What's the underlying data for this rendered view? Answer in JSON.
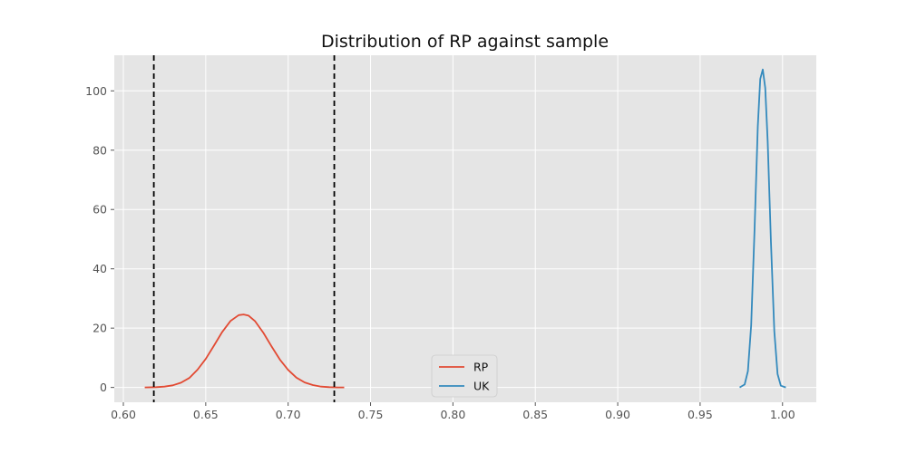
{
  "chart_data": {
    "type": "line",
    "title": "Distribution of RP against sample",
    "xlabel": "",
    "ylabel": "",
    "xlim": [
      0.5945,
      1.0205
    ],
    "ylim": [
      -5.0,
      112.0
    ],
    "x_ticks": [
      0.6,
      0.65,
      0.7,
      0.75,
      0.8,
      0.85,
      0.9,
      0.95,
      1.0
    ],
    "x_tick_labels": [
      "0.60",
      "0.65",
      "0.70",
      "0.75",
      "0.80",
      "0.85",
      "0.90",
      "0.95",
      "1.00"
    ],
    "y_ticks": [
      0,
      20,
      40,
      60,
      80,
      100
    ],
    "y_tick_labels": [
      "0",
      "20",
      "40",
      "60",
      "80",
      "100"
    ],
    "grid": true,
    "legend_position": "lower center",
    "series": [
      {
        "name": "RP",
        "color": "#E24A33",
        "x": [
          0.613,
          0.62,
          0.625,
          0.63,
          0.635,
          0.64,
          0.645,
          0.65,
          0.655,
          0.66,
          0.665,
          0.67,
          0.673,
          0.676,
          0.68,
          0.685,
          0.69,
          0.695,
          0.7,
          0.705,
          0.71,
          0.715,
          0.72,
          0.725,
          0.73,
          0.734
        ],
        "y": [
          0.0,
          0.1,
          0.3,
          0.7,
          1.6,
          3.2,
          6.0,
          9.6,
          14.1,
          18.7,
          22.4,
          24.4,
          24.6,
          24.2,
          22.3,
          18.4,
          13.8,
          9.4,
          5.9,
          3.3,
          1.7,
          0.8,
          0.3,
          0.1,
          0.0,
          0.0
        ]
      },
      {
        "name": "UK",
        "color": "#348ABD",
        "x": [
          0.974,
          0.977,
          0.979,
          0.981,
          0.983,
          0.985,
          0.9865,
          0.988,
          0.9895,
          0.991,
          0.993,
          0.995,
          0.997,
          0.999,
          1.002
        ],
        "y": [
          0.0,
          1.0,
          5.5,
          21.0,
          53.0,
          88.0,
          104.0,
          107.2,
          101.0,
          83.0,
          49.0,
          19.0,
          4.5,
          0.6,
          0.0
        ]
      }
    ],
    "vertical_lines": [
      {
        "x": 0.6185,
        "style": "dashed",
        "color": "#000000"
      },
      {
        "x": 0.728,
        "style": "dashed",
        "color": "#000000"
      }
    ]
  }
}
